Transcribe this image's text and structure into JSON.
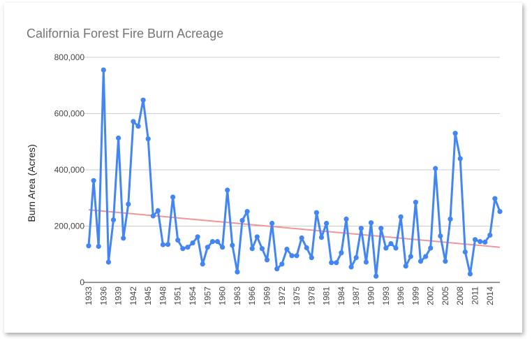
{
  "chart_data": {
    "type": "line",
    "title": "California Forest Fire Burn Acreage",
    "xlabel": "",
    "ylabel": "Burn Area (Acres)",
    "ylim": [
      0,
      800000
    ],
    "yticks": [
      "0",
      "200,000",
      "400,000",
      "600,000",
      "800,000"
    ],
    "xticks": [
      "1933",
      "1936",
      "1939",
      "1942",
      "1945",
      "1948",
      "1951",
      "1954",
      "1957",
      "1960",
      "1963",
      "1966",
      "1969",
      "1972",
      "1975",
      "1978",
      "1981",
      "1984",
      "1987",
      "1990",
      "1993",
      "1996",
      "1999",
      "2002",
      "2005",
      "2008",
      "2011",
      "2014"
    ],
    "x": [
      1933,
      1934,
      1935,
      1936,
      1937,
      1938,
      1939,
      1940,
      1941,
      1942,
      1943,
      1944,
      1945,
      1946,
      1947,
      1948,
      1949,
      1950,
      1951,
      1952,
      1953,
      1954,
      1955,
      1956,
      1957,
      1958,
      1959,
      1960,
      1961,
      1962,
      1963,
      1964,
      1965,
      1966,
      1967,
      1968,
      1969,
      1970,
      1971,
      1972,
      1973,
      1974,
      1975,
      1976,
      1977,
      1978,
      1979,
      1980,
      1981,
      1982,
      1983,
      1984,
      1985,
      1986,
      1987,
      1988,
      1989,
      1990,
      1991,
      1992,
      1993,
      1994,
      1995,
      1996,
      1997,
      1998,
      1999,
      2000,
      2001,
      2002,
      2003,
      2004,
      2005,
      2006,
      2007,
      2008,
      2009,
      2010,
      2011,
      2012,
      2013,
      2014,
      2015,
      2016
    ],
    "series": [
      {
        "values": [
          130000,
          362000,
          128000,
          755000,
          72000,
          222000,
          513000,
          157000,
          278000,
          572000,
          555000,
          648000,
          510000,
          236000,
          255000,
          134000,
          135000,
          303000,
          150000,
          120000,
          125000,
          140000,
          162000,
          65000,
          125000,
          145000,
          145000,
          125000,
          328000,
          132000,
          37000,
          220000,
          252000,
          120000,
          162000,
          120000,
          80000,
          210000,
          48000,
          65000,
          118000,
          95000,
          95000,
          158000,
          123000,
          88000,
          248000,
          160000,
          210000,
          70000,
          70000,
          105000,
          225000,
          55000,
          88000,
          192000,
          72000,
          212000,
          22000,
          192000,
          122000,
          138000,
          122000,
          233000,
          58000,
          92000,
          285000,
          75000,
          92000,
          122000,
          405000,
          165000,
          75000,
          225000,
          530000,
          440000,
          108000,
          30000,
          152000,
          145000,
          143000,
          168000,
          298000,
          252000
        ],
        "color": "#4285f4"
      }
    ],
    "trendline": {
      "start": [
        1933,
        258000
      ],
      "end": [
        2016,
        125000
      ],
      "color": "#f09694"
    },
    "grid": true,
    "gridline_color": "#cccccc"
  }
}
